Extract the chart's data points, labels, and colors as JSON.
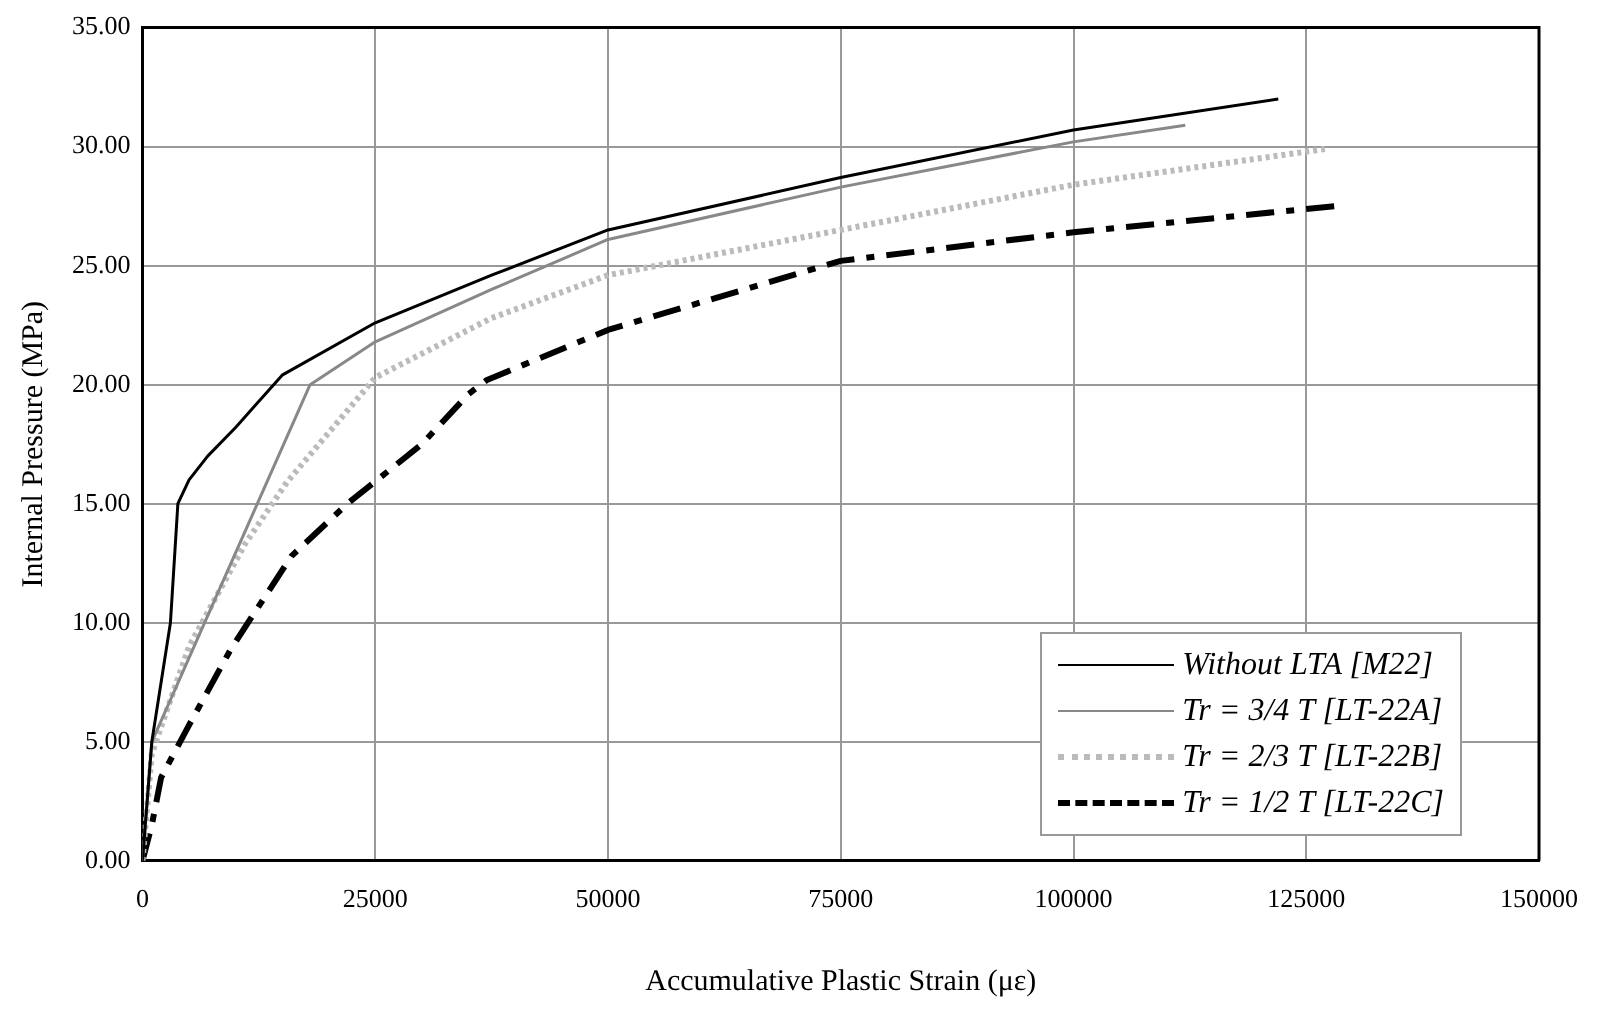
{
  "chart_data": {
    "type": "line",
    "xlabel": "Accumulative Plastic Strain (με)",
    "ylabel": "Internal Pressure (MPa)",
    "xlim": [
      0,
      150000
    ],
    "xticks": [
      0,
      25000,
      50000,
      75000,
      100000,
      125000,
      150000
    ],
    "ylim": [
      0,
      35
    ],
    "yticks": [
      {
        "value": 0,
        "label": "0.00"
      },
      {
        "value": 5,
        "label": "5.00"
      },
      {
        "value": 10,
        "label": "10.00"
      },
      {
        "value": 15,
        "label": "15.00"
      },
      {
        "value": 20,
        "label": "20.00"
      },
      {
        "value": 25,
        "label": "25.00"
      },
      {
        "value": 30,
        "label": "30.00"
      },
      {
        "value": 35,
        "label": "35.00"
      }
    ],
    "grid": true,
    "legend": "bottom right",
    "marker": "none",
    "series": [
      {
        "name": "Without LTA [M22]",
        "color": "#000000",
        "line_style": "solid",
        "x": [
          0,
          1000,
          3000,
          3800,
          5000,
          7000,
          10000,
          15000,
          25000,
          37500,
          50000,
          75000,
          100000,
          122000
        ],
        "values": [
          0,
          5,
          10,
          15,
          16,
          17,
          18.2,
          20.4,
          22.6,
          24.6,
          26.5,
          28.7,
          30.7,
          32
        ]
      },
      {
        "name": "Tr = 3/4 T [LT-22A]",
        "color": "#888888",
        "line_style": "solid",
        "x": [
          0,
          1000,
          18000,
          25000,
          37500,
          50000,
          75000,
          100000,
          112000
        ],
        "values": [
          0,
          5,
          20,
          21.8,
          24,
          26.1,
          28.3,
          30.2,
          30.9
        ]
      },
      {
        "name": "Tr = 2/3 T [LT-22B]",
        "color": "#bbbbbb",
        "line_style": "dotted",
        "x": [
          0,
          1000,
          5000,
          11000,
          15500,
          25000,
          37500,
          50000,
          75000,
          100000,
          127000
        ],
        "values": [
          0,
          4.5,
          9,
          13.3,
          15.9,
          20.3,
          22.8,
          24.6,
          26.5,
          28.4,
          29.9
        ]
      },
      {
        "name": "Tr = 1/2 T [LT-22C]",
        "color": "#000000",
        "line_style": "dashed",
        "x": [
          0,
          1000,
          2000,
          5000,
          9500,
          16000,
          22000,
          30000,
          35000,
          37000,
          50000,
          75000,
          100000,
          128000
        ],
        "values": [
          0,
          1.5,
          3.5,
          5.7,
          8.9,
          12.8,
          15,
          17.5,
          19.6,
          20.2,
          22.3,
          25.2,
          26.4,
          27.5
        ]
      }
    ]
  }
}
